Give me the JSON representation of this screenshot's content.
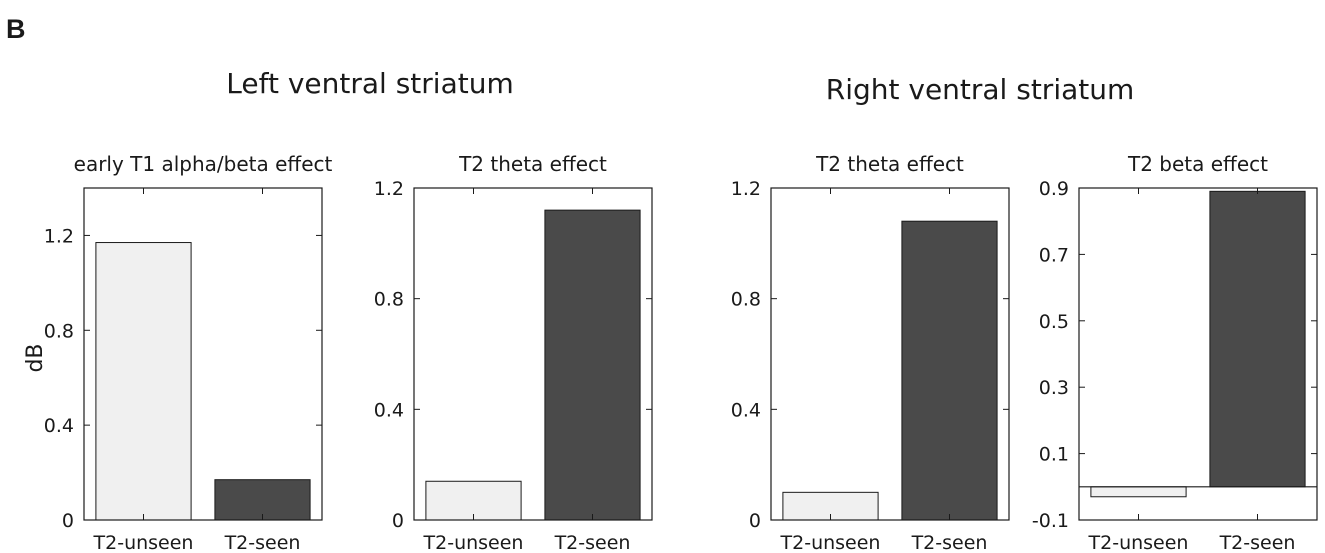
{
  "figure": {
    "panel_letter": "B",
    "groups": [
      {
        "title": "Left ventral striatum"
      },
      {
        "title": "Right ventral striatum"
      }
    ],
    "ylabel": "dB"
  },
  "colors": {
    "unseen_bar": "#f0f0f0",
    "seen_bar": "#4a4a4a",
    "axis": "#1a1a1a"
  },
  "chart_data": [
    {
      "type": "bar",
      "title": "early T1 alpha/beta effect",
      "categories": [
        "T2-unseen",
        "T2-seen"
      ],
      "values": [
        1.17,
        0.17
      ],
      "ylim": [
        0,
        1.4
      ],
      "yticks": [
        0,
        0.4,
        0.8,
        1.2
      ],
      "ytick_labels": [
        "0",
        "0.4",
        "0.8",
        "1.2"
      ],
      "ylabel": "dB",
      "xlabel": ""
    },
    {
      "type": "bar",
      "title": "T2 theta effect",
      "categories": [
        "T2-unseen",
        "T2-seen"
      ],
      "values": [
        0.14,
        1.12
      ],
      "ylim": [
        0,
        1.2
      ],
      "yticks": [
        0,
        0.4,
        0.8,
        1.2
      ],
      "ytick_labels": [
        "0",
        "0.4",
        "0.8",
        "1.2"
      ],
      "ylabel": "",
      "xlabel": ""
    },
    {
      "type": "bar",
      "title": "T2 theta effect",
      "categories": [
        "T2-unseen",
        "T2-seen"
      ],
      "values": [
        0.1,
        1.08
      ],
      "ylim": [
        0,
        1.2
      ],
      "yticks": [
        0,
        0.4,
        0.8,
        1.2
      ],
      "ytick_labels": [
        "0",
        "0.4",
        "0.8",
        "1.2"
      ],
      "ylabel": "",
      "xlabel": ""
    },
    {
      "type": "bar",
      "title": "T2 beta effect",
      "categories": [
        "T2-unseen",
        "T2-seen"
      ],
      "values": [
        -0.03,
        0.89
      ],
      "ylim": [
        -0.1,
        0.9
      ],
      "yticks": [
        -0.1,
        0.1,
        0.3,
        0.5,
        0.7,
        0.9
      ],
      "ytick_labels": [
        "-0.1",
        "0.1",
        "0.3",
        "0.5",
        "0.7",
        "0.9"
      ],
      "ylabel": "",
      "xlabel": ""
    }
  ]
}
